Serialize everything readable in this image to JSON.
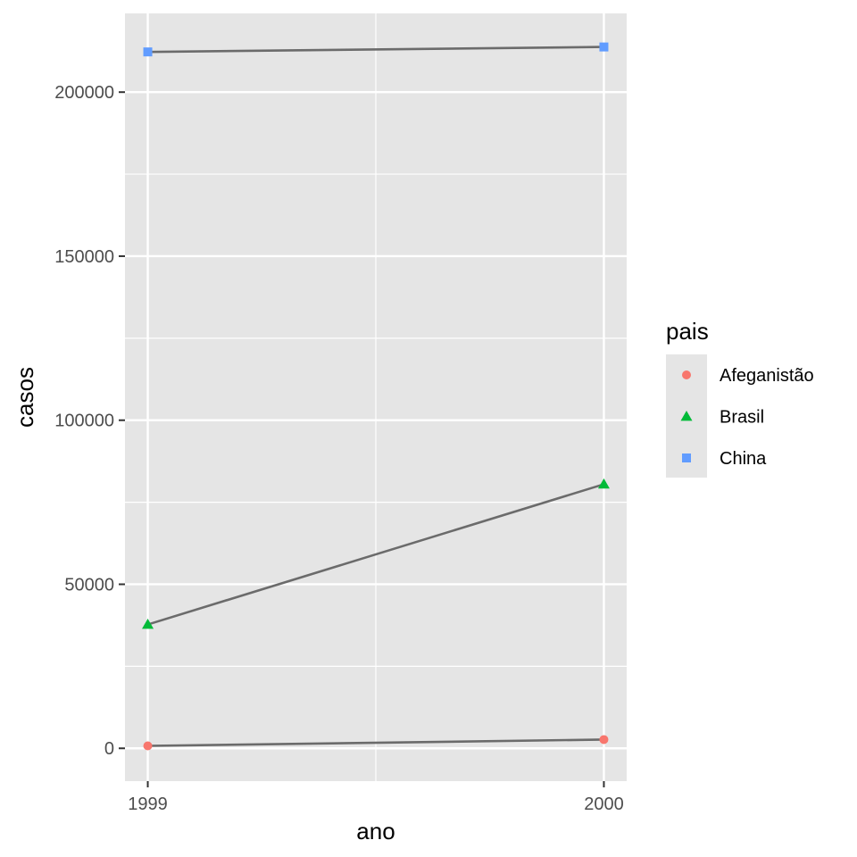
{
  "chart_data": {
    "type": "line",
    "x": [
      1999,
      2000
    ],
    "x_tick_labels": [
      "1999",
      "2000"
    ],
    "y_ticks": [
      0,
      50000,
      100000,
      150000,
      200000
    ],
    "y_tick_labels": [
      "0",
      "50000",
      "100000",
      "150000",
      "200000"
    ],
    "xlim": [
      1998.95,
      2000.05
    ],
    "ylim": [
      -10000,
      224000
    ],
    "xlabel": "ano",
    "ylabel": "casos",
    "grid": true,
    "legend": {
      "title": "pais",
      "placement": "right"
    },
    "line_color": "#6b6b6b",
    "series": [
      {
        "name": "Afeganistão",
        "values": [
          745,
          2666
        ],
        "color": "#F8766D",
        "shape": "circle"
      },
      {
        "name": "Brasil",
        "values": [
          37737,
          80488
        ],
        "color": "#00BA38",
        "shape": "triangle"
      },
      {
        "name": "China",
        "values": [
          212258,
          213766
        ],
        "color": "#619CFF",
        "shape": "square"
      }
    ],
    "colors": {
      "panel": "#e5e5e5",
      "grid": "#ffffff",
      "background": "#ffffff"
    }
  }
}
